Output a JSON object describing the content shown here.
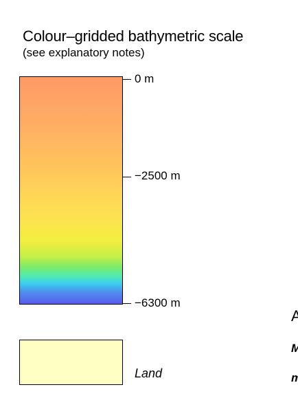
{
  "legend": {
    "title": "Colour–gridded bathymetric scale",
    "subtitle": "(see explanatory notes)",
    "ticks": [
      {
        "label": "0 m",
        "depth_m": 0
      },
      {
        "label": "−2500 m",
        "depth_m": -2500
      },
      {
        "label": "−6300 m",
        "depth_m": -6300
      }
    ],
    "gradient_colors": [
      "#ff9a66",
      "#ffc55c",
      "#f4ee3f",
      "#7aec6c",
      "#3ccdef",
      "#5a5cec"
    ],
    "land": {
      "label": "Land",
      "color": "#ffffc4"
    }
  },
  "edge_text": {
    "a": "A",
    "m_upper": "M",
    "m_lower": "m"
  }
}
